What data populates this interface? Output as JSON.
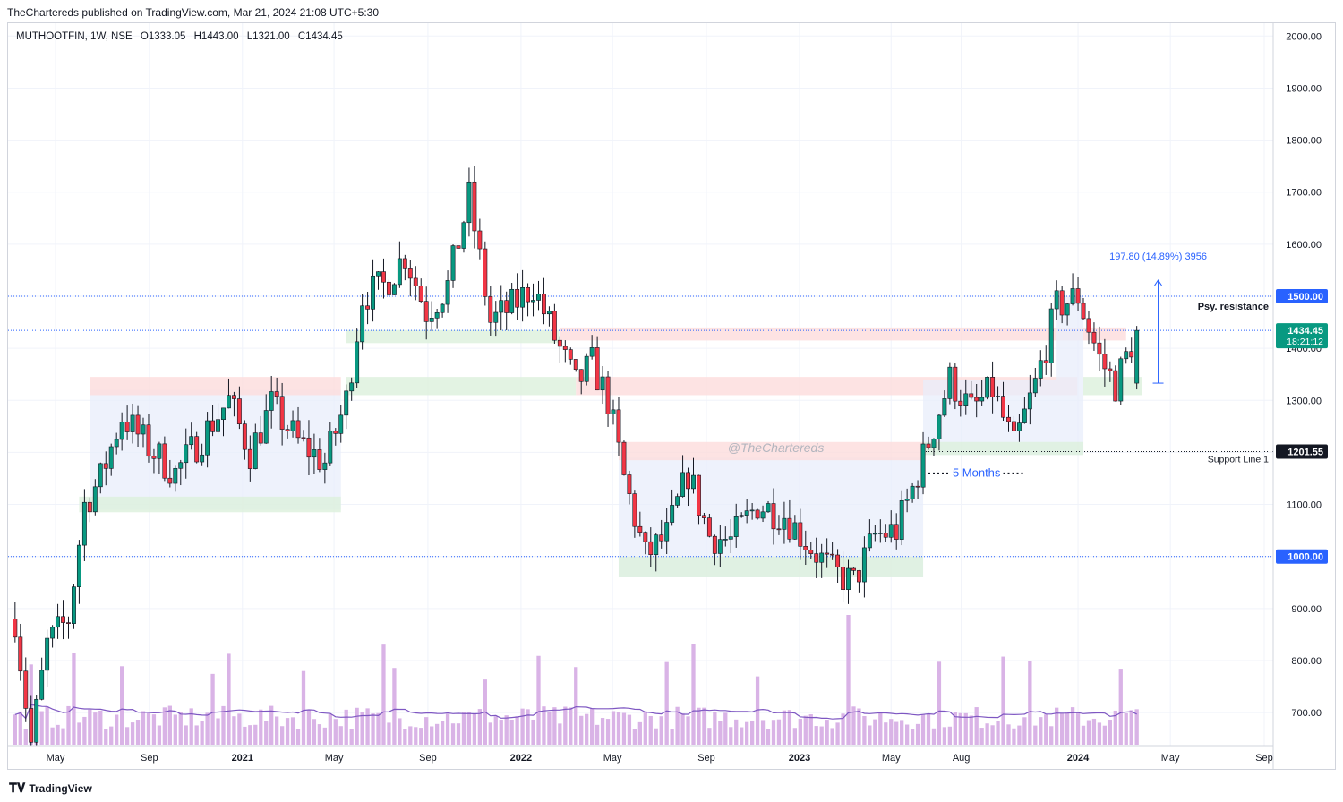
{
  "header": {
    "published": "TheChartereds published on TradingView.com, Mar 21, 2024 21:08 UTC+5:30"
  },
  "legend": {
    "symbol": "MUTHOOTFIN, 1W, NSE",
    "open": "O1333.05",
    "high": "H1443.00",
    "low": "L1321.00",
    "close": "C1434.45"
  },
  "footer": {
    "brand": "TradingView",
    "logo_icon": "tradingview-logo-icon"
  },
  "colors": {
    "up": "#089981",
    "down": "#f23645",
    "volume": "#d9b3e6",
    "volume_ma": "#7e57c2",
    "hline": "#2962ff",
    "supply_zone": "#fcdcdc",
    "demand_zone": "#dcf0dc",
    "range_box": "#e8eefb"
  },
  "chart_data": {
    "type": "candlestick",
    "ylim": [
      650,
      2050
    ],
    "y_ticks": [
      "2000.00",
      "1900.00",
      "1800.00",
      "1700.00",
      "1600.00",
      "1500.00",
      "1400.00",
      "1300.00",
      "1200.00",
      "1100.00",
      "1000.00",
      "900.00",
      "800.00",
      "700.00"
    ],
    "x_ticks": [
      {
        "label": "May",
        "date": "2020-05-01",
        "bold": false
      },
      {
        "label": "Sep",
        "date": "2020-09-01",
        "bold": false
      },
      {
        "label": "2021",
        "date": "2021-01-01",
        "bold": true
      },
      {
        "label": "May",
        "date": "2021-05-01",
        "bold": false
      },
      {
        "label": "Sep",
        "date": "2021-09-01",
        "bold": false
      },
      {
        "label": "2022",
        "date": "2022-01-01",
        "bold": true
      },
      {
        "label": "May",
        "date": "2022-05-01",
        "bold": false
      },
      {
        "label": "Sep",
        "date": "2022-09-01",
        "bold": false
      },
      {
        "label": "2023",
        "date": "2023-01-01",
        "bold": true
      },
      {
        "label": "May",
        "date": "2023-05-01",
        "bold": false
      },
      {
        "label": "Aug",
        "date": "2023-08-01",
        "bold": false
      },
      {
        "label": "2024",
        "date": "2024-01-01",
        "bold": true
      },
      {
        "label": "May",
        "date": "2024-05-01",
        "bold": false
      },
      {
        "label": "Sep",
        "date": "2024-09-01",
        "bold": false
      }
    ],
    "price_path": [
      {
        "date": "2020-03-09",
        "close": 880
      },
      {
        "date": "2020-03-30",
        "close": 640
      },
      {
        "date": "2020-04-20",
        "close": 830
      },
      {
        "date": "2020-05-18",
        "close": 880
      },
      {
        "date": "2020-06-08",
        "close": 1100
      },
      {
        "date": "2020-06-29",
        "close": 1150
      },
      {
        "date": "2020-07-27",
        "close": 1270
      },
      {
        "date": "2020-08-31",
        "close": 1210
      },
      {
        "date": "2020-10-05",
        "close": 1160
      },
      {
        "date": "2020-11-09",
        "close": 1230
      },
      {
        "date": "2020-12-14",
        "close": 1300
      },
      {
        "date": "2021-01-11",
        "close": 1200
      },
      {
        "date": "2021-02-08",
        "close": 1290
      },
      {
        "date": "2021-03-15",
        "close": 1220
      },
      {
        "date": "2021-04-19",
        "close": 1180
      },
      {
        "date": "2021-05-17",
        "close": 1300
      },
      {
        "date": "2021-06-07",
        "close": 1500
      },
      {
        "date": "2021-07-05",
        "close": 1520
      },
      {
        "date": "2021-08-02",
        "close": 1580
      },
      {
        "date": "2021-08-30",
        "close": 1470
      },
      {
        "date": "2021-09-27",
        "close": 1520
      },
      {
        "date": "2021-10-25",
        "close": 1690
      },
      {
        "date": "2021-11-22",
        "close": 1450
      },
      {
        "date": "2021-12-20",
        "close": 1480
      },
      {
        "date": "2022-01-17",
        "close": 1520
      },
      {
        "date": "2022-02-14",
        "close": 1420
      },
      {
        "date": "2022-03-14",
        "close": 1330
      },
      {
        "date": "2022-04-04",
        "close": 1370
      },
      {
        "date": "2022-04-25",
        "close": 1300
      },
      {
        "date": "2022-05-16",
        "close": 1150
      },
      {
        "date": "2022-06-13",
        "close": 1000
      },
      {
        "date": "2022-07-11",
        "close": 1040
      },
      {
        "date": "2022-08-08",
        "close": 1160
      },
      {
        "date": "2022-09-05",
        "close": 1040
      },
      {
        "date": "2022-10-03",
        "close": 1030
      },
      {
        "date": "2022-11-07",
        "close": 1100
      },
      {
        "date": "2022-12-12",
        "close": 1080
      },
      {
        "date": "2023-01-09",
        "close": 1030
      },
      {
        "date": "2023-02-13",
        "close": 970
      },
      {
        "date": "2023-03-13",
        "close": 950
      },
      {
        "date": "2023-04-10",
        "close": 1040
      },
      {
        "date": "2023-05-08",
        "close": 1050
      },
      {
        "date": "2023-05-29",
        "close": 1130
      },
      {
        "date": "2023-06-19",
        "close": 1220
      },
      {
        "date": "2023-07-17",
        "close": 1340
      },
      {
        "date": "2023-08-14",
        "close": 1280
      },
      {
        "date": "2023-09-11",
        "close": 1320
      },
      {
        "date": "2023-10-09",
        "close": 1210
      },
      {
        "date": "2023-11-06",
        "close": 1330
      },
      {
        "date": "2023-12-04",
        "close": 1480
      },
      {
        "date": "2024-01-01",
        "close": 1500
      },
      {
        "date": "2024-01-29",
        "close": 1380
      },
      {
        "date": "2024-02-19",
        "close": 1330
      },
      {
        "date": "2024-03-18",
        "close": 1434.45
      }
    ],
    "last_candle": {
      "date": "2024-03-18",
      "open": 1333.05,
      "high": 1443.0,
      "low": 1321.0,
      "close": 1434.45
    },
    "horizontal_lines": [
      {
        "price": 1500,
        "label": "1500.00",
        "style": "dotted"
      },
      {
        "price": 1434.45,
        "label": "1434.45",
        "style": "dotted"
      },
      {
        "price": 1000,
        "label": "1000.00",
        "style": "dotted"
      },
      {
        "price": 1201.55,
        "label": "1201.55",
        "style": "dotted-dark"
      }
    ],
    "price_labels": {
      "current_price": "1434.45",
      "countdown": "18:21:12"
    },
    "zones": [
      {
        "kind": "range",
        "x0": "2020-06-15",
        "x1": "2021-05-10",
        "y0": 1090,
        "y1": 1320
      },
      {
        "kind": "supply",
        "x0": "2020-06-15",
        "x1": "2021-05-10",
        "y0": 1310,
        "y1": 1345
      },
      {
        "kind": "demand",
        "x0": "2020-06-01",
        "x1": "2021-05-10",
        "y0": 1085,
        "y1": 1115
      },
      {
        "kind": "demand",
        "x0": "2021-05-17",
        "x1": "2022-02-20",
        "y0": 1410,
        "y1": 1435
      },
      {
        "kind": "demand",
        "x0": "2021-05-17",
        "x1": "2022-03-14",
        "y0": 1310,
        "y1": 1345
      },
      {
        "kind": "supply",
        "x0": "2022-02-21",
        "x1": "2024-03-04",
        "y0": 1415,
        "y1": 1440
      },
      {
        "kind": "supply",
        "x0": "2022-03-14",
        "x1": "2023-12-31",
        "y0": 1310,
        "y1": 1345
      },
      {
        "kind": "range",
        "x0": "2022-05-09",
        "x1": "2023-06-12",
        "y0": 960,
        "y1": 1190
      },
      {
        "kind": "supply",
        "x0": "2022-05-09",
        "x1": "2023-06-12",
        "y0": 1185,
        "y1": 1220
      },
      {
        "kind": "demand",
        "x0": "2022-05-09",
        "x1": "2023-06-12",
        "y0": 960,
        "y1": 1000
      },
      {
        "kind": "range",
        "x0": "2023-06-12",
        "x1": "2024-01-08",
        "y0": 1195,
        "y1": 1340
      },
      {
        "kind": "demand",
        "x0": "2023-06-12",
        "x1": "2024-01-08",
        "y0": 1195,
        "y1": 1220
      },
      {
        "kind": "range",
        "x0": "2023-12-04",
        "x1": "2024-01-08",
        "y0": 1340,
        "y1": 1500
      },
      {
        "kind": "demand",
        "x0": "2024-01-08",
        "x1": "2024-03-25",
        "y0": 1310,
        "y1": 1345
      }
    ],
    "annotations": {
      "measure": "197.80 (14.89%) 3956",
      "psy_resistance": "Psy. resistance",
      "support_line": "Support Line 1",
      "five_months": "5 Months",
      "watermark": "@TheChartereds"
    }
  }
}
